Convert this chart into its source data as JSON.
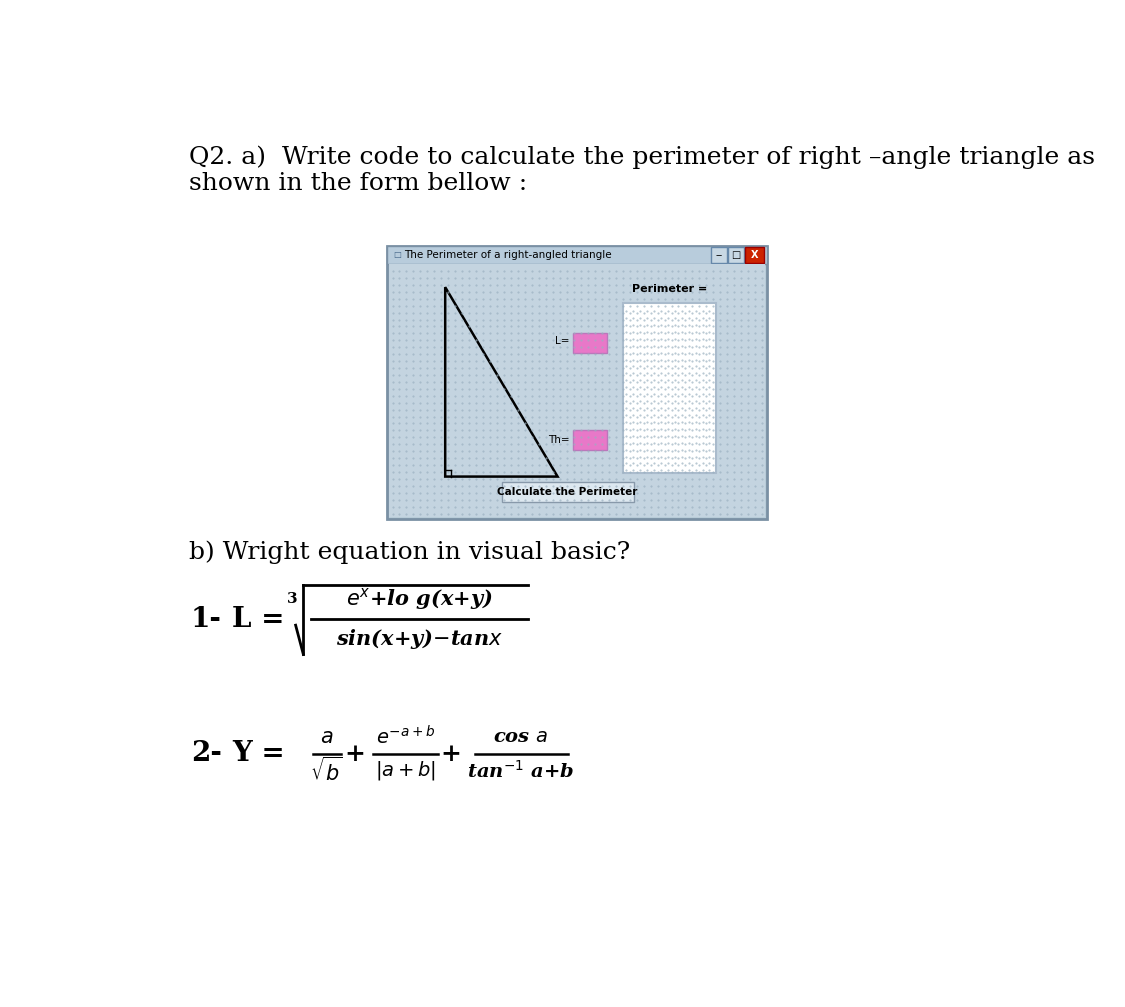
{
  "title_line1": "Q2. a)  Write code to calculate the perimeter of right –angle triangle as",
  "title_line2": "shown in the form bellow :",
  "window_title": "The Perimeter of a right-angled triangle",
  "perimeter_label": "Perimeter =",
  "button_text": "Calculate the Perimeter",
  "input_color": "#e878c8",
  "b_part": "b) Wright equation in visual basic?",
  "eq1_label": "1-",
  "eq1_L": "L =",
  "eq1_cbrt": "3",
  "eq2_label": "2-",
  "eq2_Y": "Y ="
}
